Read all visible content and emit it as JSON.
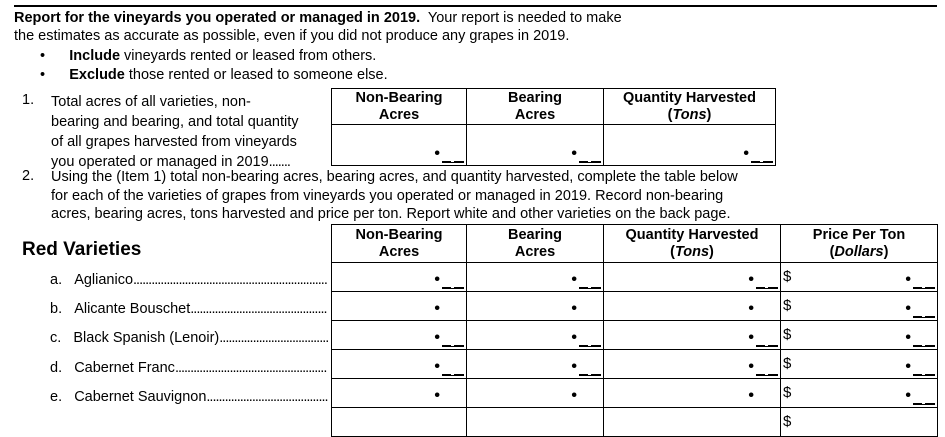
{
  "intro": {
    "line1_bold": "Report for the vineyards you operated or managed in 2019.",
    "line1_rest": "Your report is needed to make",
    "line2": "the estimates as accurate as possible, even if you did not produce any grapes in 2019.",
    "bullet1_bold": "Include",
    "bullet1_rest": "vineyards rented or leased from others.",
    "bullet2_bold": "Exclude",
    "bullet2_rest": "those rented or leased to someone else."
  },
  "item1": {
    "number": "1.",
    "lines": [
      "Total acres of all varieties, non-",
      "bearing and bearing, and total quantity",
      "of all grapes harvested from vineyards",
      "you operated or managed in 2019"
    ]
  },
  "item2": {
    "number": "2.",
    "lines": [
      "Using the (Item 1) total non-bearing acres, bearing acres, and quantity harvested, complete the table below",
      "for each of the varieties of grapes from vineyards you operated or managed in 2019. Record non-bearing",
      "acres, bearing acres, tons harvested and price per ton.  Report white and other varieties on the back page."
    ]
  },
  "columns": {
    "nonbearing": [
      "Non-Bearing",
      "Acres"
    ],
    "bearing": [
      "Bearing",
      "Acres"
    ],
    "quantity": [
      "Quantity Harvested",
      "Tons"
    ],
    "price": [
      "Price Per Ton",
      "Dollars"
    ]
  },
  "section_title": "Red Varieties",
  "currency": "$",
  "varieties": [
    {
      "letter": "a.",
      "name": "Aglianico"
    },
    {
      "letter": "b.",
      "name": "Alicante Bouschet"
    },
    {
      "letter": "c.",
      "name": "Black Spanish (Lenoir)"
    },
    {
      "letter": "d.",
      "name": "Cabernet Franc"
    },
    {
      "letter": "e.",
      "name": "Cabernet Sauvignon"
    }
  ]
}
